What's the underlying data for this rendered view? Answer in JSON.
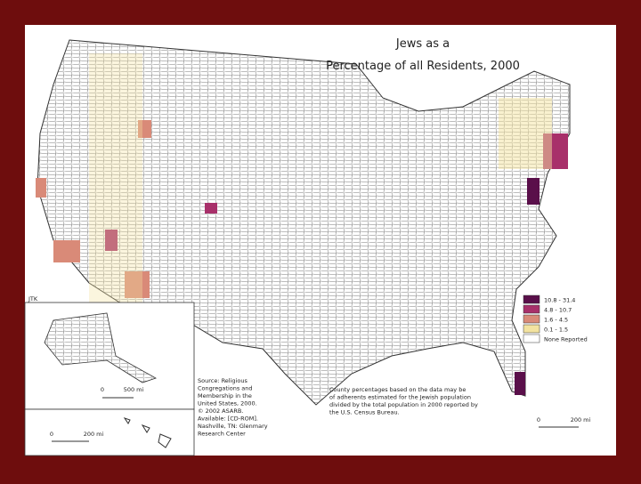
{
  "title": {
    "line1": "Jews as a",
    "line2": "Percentage of all Residents, 2000"
  },
  "credit": "JTK",
  "legend": {
    "items": [
      {
        "label": "10.8 - 31.4",
        "color": "#5a0f4a"
      },
      {
        "label": "4.8 - 10.7",
        "color": "#a8306a"
      },
      {
        "label": "1.6 - 4.5",
        "color": "#d98a78"
      },
      {
        "label": "0.1 - 1.5",
        "color": "#f3e3a0"
      },
      {
        "label": "None Reported",
        "color": "#ffffff"
      }
    ]
  },
  "source": {
    "lines": [
      "Source: Religious",
      "Congregations and",
      "Membership in the",
      "United States, 2000.",
      "© 2002 ASARB.",
      "Available: [CD-ROM].",
      "Nashville, TN: Glenmary",
      "Research Center"
    ]
  },
  "note": {
    "lines": [
      "County percentages based on the data may be",
      "of adherents estimated for the Jewish population",
      "divided by the total population in 2000 reported by",
      "the U.S. Census Bureau."
    ]
  },
  "scales": {
    "alaska": {
      "start": "0",
      "end": "500 mi"
    },
    "hawaii": {
      "start": "0",
      "end": "200 mi"
    },
    "main": {
      "start": "0",
      "end": "200 mi"
    }
  }
}
